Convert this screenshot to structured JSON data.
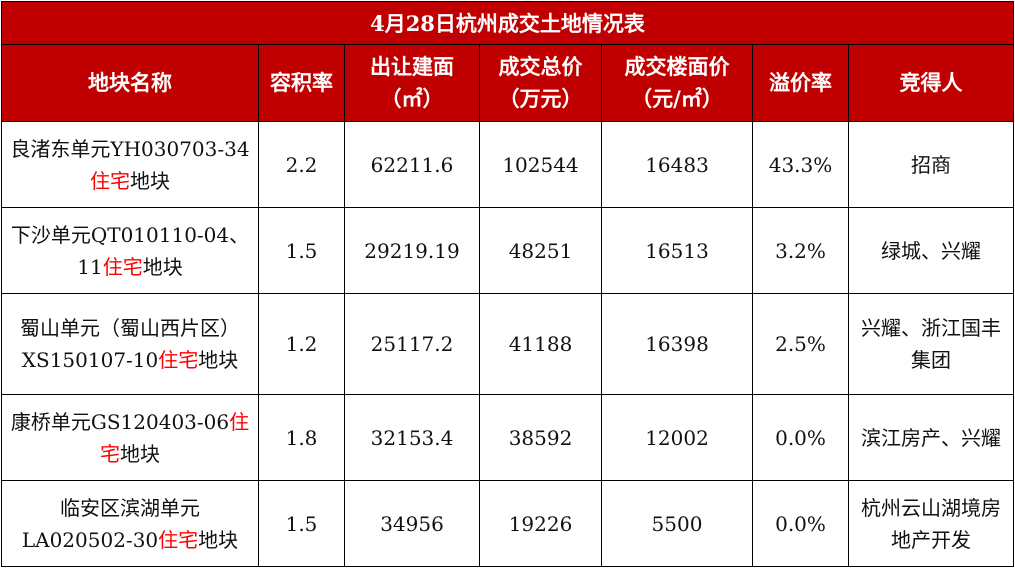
{
  "title": "4月28日杭州成交土地情况表",
  "headers": [
    {
      "line1": "地块名称",
      "line2": ""
    },
    {
      "line1": "容积率",
      "line2": ""
    },
    {
      "line1": "出让建面",
      "line2": "（㎡）"
    },
    {
      "line1": "成交总价",
      "line2": "（万元）"
    },
    {
      "line1": "成交楼面价",
      "line2": "（元/㎡）"
    },
    {
      "line1": "溢价率",
      "line2": ""
    },
    {
      "line1": "竞得人",
      "line2": ""
    }
  ],
  "rows": [
    {
      "name_pre": "良渚东单元YH030703-34",
      "name_red": "住宅",
      "name_post": "地块",
      "far": "2.2",
      "area": "62211.6",
      "total": "102544",
      "unit_price": "16483",
      "premium": "43.3%",
      "winner": "招商"
    },
    {
      "name_pre": "下沙单元QT010110-04、11",
      "name_red": "住宅",
      "name_post": "地块",
      "far": "1.5",
      "area": "29219.19",
      "total": "48251",
      "unit_price": "16513",
      "premium": "3.2%",
      "winner": "绿城、兴耀"
    },
    {
      "name_pre": "蜀山单元（蜀山西片区）XS150107-10",
      "name_red": "住宅",
      "name_post": "地块",
      "far": "1.2",
      "area": "25117.2",
      "total": "41188",
      "unit_price": "16398",
      "premium": "2.5%",
      "winner": "兴耀、浙江国丰集团"
    },
    {
      "name_pre": "康桥单元GS120403-06",
      "name_red": "住宅",
      "name_post": "地块",
      "far": "1.8",
      "area": "32153.4",
      "total": "38592",
      "unit_price": "12002",
      "premium": "0.0%",
      "winner": "滨江房产、兴耀"
    },
    {
      "name_pre": "临安区滨湖单元LA020502-30",
      "name_red": "住宅",
      "name_post": "地块",
      "far": "1.5",
      "area": "34956",
      "total": "19226",
      "unit_price": "5500",
      "premium": "0.0%",
      "winner": "杭州云山湖境房地产开发"
    }
  ],
  "colors": {
    "header_bg": "#c00000",
    "highlight": "#ff0000"
  }
}
